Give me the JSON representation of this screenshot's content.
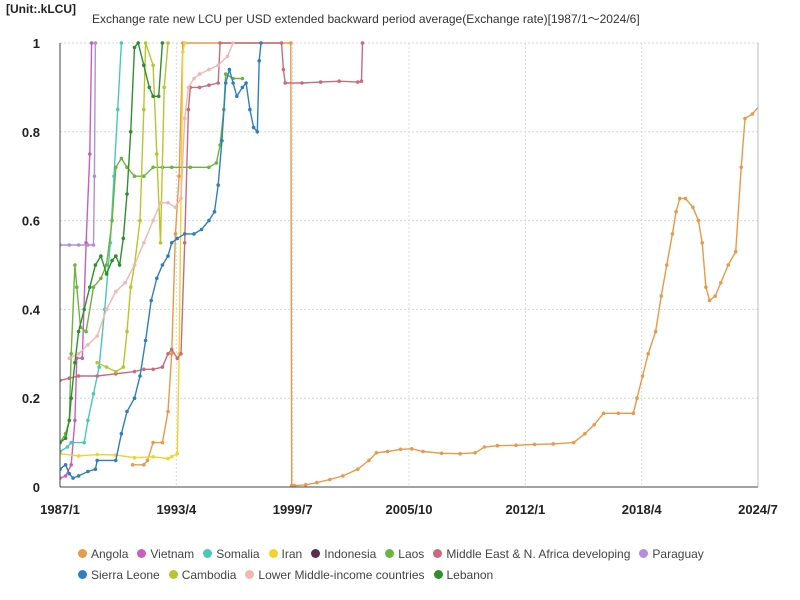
{
  "header": {
    "unit": "[Unit:.kLCU]",
    "title": "Exchange rate new LCU per USD extended backward  period average(Exchange rate)[1987/1～2024/6]"
  },
  "chart_data": {
    "type": "line",
    "title": "Exchange rate new LCU per USD extended backward  period average(Exchange rate)[1987/1～2024/6]",
    "unit": "[Unit:.kLCU]",
    "xlabel": "",
    "ylabel": "",
    "xlim": [
      "1987/1",
      "2024/7"
    ],
    "ylim": [
      0,
      1
    ],
    "y_ticks": [
      0,
      0.2,
      0.4,
      0.6,
      0.8,
      1
    ],
    "y_tick_labels": [
      "0",
      "0.2",
      "0.4",
      "0.6",
      "0.8",
      "1"
    ],
    "x_ticks": [
      "1987/1",
      "1993/4",
      "1999/7",
      "2005/10",
      "2012/1",
      "2018/4",
      "2024/7"
    ],
    "grid": true,
    "legend_position": "bottom",
    "series": [
      {
        "name": "Angola",
        "color": "#e8994a",
        "points": [
          [
            1990.9,
            0.05
          ],
          [
            1991.5,
            0.05
          ],
          [
            1991.7,
            0.06
          ],
          [
            1992.0,
            0.1
          ],
          [
            1992.5,
            0.1
          ],
          [
            1992.8,
            0.17
          ],
          [
            1993.0,
            0.3
          ],
          [
            1993.2,
            0.57
          ],
          [
            1993.4,
            0.7
          ],
          [
            1993.6,
            1.0
          ],
          [
            1999.4,
            1.0
          ],
          [
            1999.45,
            0.003
          ],
          [
            1999.6,
            0.003
          ],
          [
            2000.2,
            0.005
          ],
          [
            2000.8,
            0.01
          ],
          [
            2001.5,
            0.017
          ],
          [
            2002.2,
            0.025
          ],
          [
            2003.0,
            0.04
          ],
          [
            2003.6,
            0.06
          ],
          [
            2004.0,
            0.077
          ],
          [
            2004.6,
            0.08
          ],
          [
            2005.3,
            0.085
          ],
          [
            2005.9,
            0.086
          ],
          [
            2006.5,
            0.08
          ],
          [
            2007.5,
            0.076
          ],
          [
            2008.5,
            0.075
          ],
          [
            2009.3,
            0.077
          ],
          [
            2009.8,
            0.09
          ],
          [
            2010.5,
            0.093
          ],
          [
            2011.5,
            0.094
          ],
          [
            2012.5,
            0.096
          ],
          [
            2013.5,
            0.097
          ],
          [
            2014.6,
            0.1
          ],
          [
            2015.2,
            0.12
          ],
          [
            2015.7,
            0.14
          ],
          [
            2016.2,
            0.166
          ],
          [
            2017.0,
            0.166
          ],
          [
            2017.8,
            0.166
          ],
          [
            2018.0,
            0.2
          ],
          [
            2018.3,
            0.25
          ],
          [
            2018.6,
            0.3
          ],
          [
            2019.0,
            0.35
          ],
          [
            2019.3,
            0.43
          ],
          [
            2019.6,
            0.5
          ],
          [
            2019.9,
            0.57
          ],
          [
            2020.1,
            0.62
          ],
          [
            2020.3,
            0.65
          ],
          [
            2020.6,
            0.65
          ],
          [
            2021.0,
            0.63
          ],
          [
            2021.3,
            0.6
          ],
          [
            2021.5,
            0.55
          ],
          [
            2021.7,
            0.45
          ],
          [
            2021.9,
            0.42
          ],
          [
            2022.2,
            0.43
          ],
          [
            2022.5,
            0.46
          ],
          [
            2022.9,
            0.5
          ],
          [
            2023.3,
            0.53
          ],
          [
            2023.6,
            0.72
          ],
          [
            2023.8,
            0.83
          ],
          [
            2024.2,
            0.84
          ],
          [
            2024.6,
            0.86
          ]
        ]
      },
      {
        "name": "Vietnam",
        "color": "#c95ec0",
        "points": [
          [
            1987.0,
            0.02
          ],
          [
            1987.3,
            0.025
          ],
          [
            1987.6,
            0.05
          ],
          [
            1987.8,
            0.15
          ],
          [
            1987.9,
            0.29
          ],
          [
            1988.2,
            0.29
          ],
          [
            1988.4,
            0.55
          ],
          [
            1988.6,
            0.75
          ],
          [
            1988.7,
            1.0
          ]
        ]
      },
      {
        "name": "Somalia",
        "color": "#47c9b8",
        "points": [
          [
            1987.0,
            0.08
          ],
          [
            1987.4,
            0.09
          ],
          [
            1987.6,
            0.1
          ],
          [
            1988.3,
            0.1
          ],
          [
            1988.5,
            0.15
          ],
          [
            1988.8,
            0.21
          ],
          [
            1989.1,
            0.27
          ],
          [
            1989.4,
            0.4
          ],
          [
            1989.7,
            0.55
          ],
          [
            1989.9,
            0.7
          ],
          [
            1990.1,
            0.85
          ],
          [
            1990.3,
            1.0
          ]
        ]
      },
      {
        "name": "Iran",
        "color": "#f2d22e",
        "points": [
          [
            1987.0,
            0.075
          ],
          [
            1988.0,
            0.07
          ],
          [
            1989.0,
            0.073
          ],
          [
            1990.0,
            0.072
          ],
          [
            1991.0,
            0.066
          ],
          [
            1992.0,
            0.068
          ],
          [
            1992.8,
            0.064
          ],
          [
            1993.0,
            0.068
          ],
          [
            1993.3,
            0.075
          ],
          [
            1993.4,
            0.3
          ],
          [
            1993.6,
            0.98
          ],
          [
            1993.7,
            1.0
          ]
        ]
      },
      {
        "name": "Indonesia",
        "color": "#5a2e4e",
        "points": []
      },
      {
        "name": "Laos",
        "color": "#6cb33f",
        "points": [
          [
            1987.0,
            0.1
          ],
          [
            1987.3,
            0.12
          ],
          [
            1987.5,
            0.15
          ],
          [
            1987.6,
            0.3
          ],
          [
            1987.8,
            0.5
          ],
          [
            1987.9,
            0.45
          ],
          [
            1988.1,
            0.36
          ],
          [
            1988.4,
            0.35
          ],
          [
            1988.8,
            0.45
          ],
          [
            1989.2,
            0.47
          ],
          [
            1989.5,
            0.5
          ],
          [
            1989.8,
            0.6
          ],
          [
            1990.0,
            0.72
          ],
          [
            1990.3,
            0.74
          ],
          [
            1990.6,
            0.72
          ],
          [
            1991.0,
            0.7
          ],
          [
            1991.5,
            0.7
          ],
          [
            1992.0,
            0.72
          ],
          [
            1992.5,
            0.72
          ],
          [
            1993.0,
            0.72
          ],
          [
            1994.0,
            0.72
          ],
          [
            1995.0,
            0.72
          ],
          [
            1995.4,
            0.73
          ],
          [
            1995.6,
            0.77
          ],
          [
            1995.8,
            0.85
          ],
          [
            1995.9,
            0.93
          ],
          [
            1996.3,
            0.92
          ],
          [
            1996.8,
            0.92
          ]
        ]
      },
      {
        "name": "Middle East & N. Africa developing",
        "color": "#c96b7b",
        "points": [
          [
            1987.0,
            0.24
          ],
          [
            1987.5,
            0.245
          ],
          [
            1988.0,
            0.25
          ],
          [
            1989.0,
            0.25
          ],
          [
            1990.0,
            0.255
          ],
          [
            1991.0,
            0.26
          ],
          [
            1991.5,
            0.265
          ],
          [
            1992.0,
            0.265
          ],
          [
            1992.5,
            0.27
          ],
          [
            1992.8,
            0.3
          ],
          [
            1993.0,
            0.31
          ],
          [
            1993.3,
            0.29
          ],
          [
            1993.5,
            0.3
          ],
          [
            1993.7,
            0.55
          ],
          [
            1993.9,
            0.85
          ],
          [
            1994.0,
            0.9
          ],
          [
            1994.5,
            0.9
          ],
          [
            1995.0,
            0.905
          ],
          [
            1995.5,
            0.91
          ],
          [
            1995.6,
            1.0
          ],
          [
            1998.9,
            1.0
          ],
          [
            1999.0,
            0.94
          ],
          [
            1999.1,
            0.91
          ],
          [
            2000.0,
            0.91
          ],
          [
            2001.0,
            0.912
          ],
          [
            2002.0,
            0.914
          ],
          [
            2003.0,
            0.912
          ],
          [
            2003.2,
            0.914
          ],
          [
            2003.25,
            1.0
          ]
        ]
      },
      {
        "name": "Paraguay",
        "color": "#b48de0",
        "points": [
          [
            1987.0,
            0.545
          ],
          [
            1987.5,
            0.545
          ],
          [
            1988.0,
            0.545
          ],
          [
            1988.5,
            0.545
          ],
          [
            1988.8,
            0.545
          ],
          [
            1988.85,
            0.7
          ],
          [
            1988.9,
            1.0
          ]
        ]
      },
      {
        "name": "Sierra Leone",
        "color": "#2f7fbf",
        "points": [
          [
            1987.0,
            0.04
          ],
          [
            1987.3,
            0.05
          ],
          [
            1987.5,
            0.03
          ],
          [
            1987.7,
            0.02
          ],
          [
            1988.0,
            0.025
          ],
          [
            1988.5,
            0.035
          ],
          [
            1988.9,
            0.04
          ],
          [
            1989.0,
            0.06
          ],
          [
            1990.0,
            0.06
          ],
          [
            1990.3,
            0.12
          ],
          [
            1990.6,
            0.17
          ],
          [
            1991.0,
            0.2
          ],
          [
            1991.3,
            0.25
          ],
          [
            1991.6,
            0.33
          ],
          [
            1991.9,
            0.42
          ],
          [
            1992.2,
            0.47
          ],
          [
            1992.5,
            0.5
          ],
          [
            1992.8,
            0.52
          ],
          [
            1993.0,
            0.55
          ],
          [
            1993.3,
            0.56
          ],
          [
            1993.7,
            0.57
          ],
          [
            1994.2,
            0.57
          ],
          [
            1994.6,
            0.58
          ],
          [
            1995.0,
            0.6
          ],
          [
            1995.3,
            0.62
          ],
          [
            1995.5,
            0.68
          ],
          [
            1995.7,
            0.78
          ],
          [
            1995.9,
            0.91
          ],
          [
            1996.1,
            0.94
          ],
          [
            1996.3,
            0.91
          ],
          [
            1996.5,
            0.88
          ],
          [
            1996.8,
            0.9
          ],
          [
            1997.0,
            0.91
          ],
          [
            1997.2,
            0.85
          ],
          [
            1997.4,
            0.81
          ],
          [
            1997.6,
            0.8
          ],
          [
            1997.7,
            0.96
          ],
          [
            1997.8,
            1.0
          ]
        ]
      },
      {
        "name": "Cambodia",
        "color": "#b5c72d",
        "points": [
          [
            1989.0,
            0.28
          ],
          [
            1989.5,
            0.27
          ],
          [
            1990.0,
            0.26
          ],
          [
            1990.4,
            0.27
          ],
          [
            1990.6,
            0.35
          ],
          [
            1990.8,
            0.45
          ],
          [
            1991.0,
            0.5
          ],
          [
            1991.3,
            0.6
          ],
          [
            1991.5,
            0.85
          ],
          [
            1991.6,
            1.0
          ],
          [
            1992.0,
            0.95
          ],
          [
            1992.2,
            0.75
          ],
          [
            1992.4,
            0.55
          ],
          [
            1992.6,
            0.9
          ],
          [
            1992.8,
            1.0
          ]
        ]
      },
      {
        "name": "Lower Middle-income countries",
        "color": "#f0b8b0",
        "points": [
          [
            1987.5,
            0.29
          ],
          [
            1988.0,
            0.3
          ],
          [
            1988.5,
            0.32
          ],
          [
            1989.0,
            0.34
          ],
          [
            1989.5,
            0.4
          ],
          [
            1990.0,
            0.44
          ],
          [
            1990.5,
            0.46
          ],
          [
            1991.0,
            0.5
          ],
          [
            1991.5,
            0.55
          ],
          [
            1992.0,
            0.6
          ],
          [
            1992.4,
            0.64
          ],
          [
            1992.8,
            0.64
          ],
          [
            1993.2,
            0.63
          ],
          [
            1993.5,
            0.65
          ],
          [
            1993.7,
            0.83
          ],
          [
            1993.9,
            0.9
          ],
          [
            1994.2,
            0.92
          ],
          [
            1994.5,
            0.93
          ],
          [
            1995.0,
            0.94
          ],
          [
            1995.5,
            0.95
          ],
          [
            1996.0,
            0.97
          ],
          [
            1996.3,
            1.0
          ]
        ]
      },
      {
        "name": "Lebanon",
        "color": "#2e8f2e",
        "points": [
          [
            1987.0,
            0.1
          ],
          [
            1987.3,
            0.11
          ],
          [
            1987.5,
            0.15
          ],
          [
            1987.6,
            0.2
          ],
          [
            1987.8,
            0.28
          ],
          [
            1988.0,
            0.35
          ],
          [
            1988.3,
            0.4
          ],
          [
            1988.6,
            0.45
          ],
          [
            1988.9,
            0.5
          ],
          [
            1989.2,
            0.52
          ],
          [
            1989.5,
            0.48
          ],
          [
            1989.8,
            0.51
          ],
          [
            1990.0,
            0.52
          ],
          [
            1990.2,
            0.5
          ],
          [
            1990.4,
            0.56
          ],
          [
            1990.6,
            0.66
          ],
          [
            1990.8,
            0.8
          ],
          [
            1991.0,
            0.99
          ],
          [
            1991.2,
            1.0
          ],
          [
            1991.5,
            0.95
          ],
          [
            1991.8,
            0.9
          ],
          [
            1992.0,
            0.88
          ],
          [
            1992.3,
            0.88
          ],
          [
            1992.5,
            1.0
          ]
        ]
      }
    ]
  }
}
